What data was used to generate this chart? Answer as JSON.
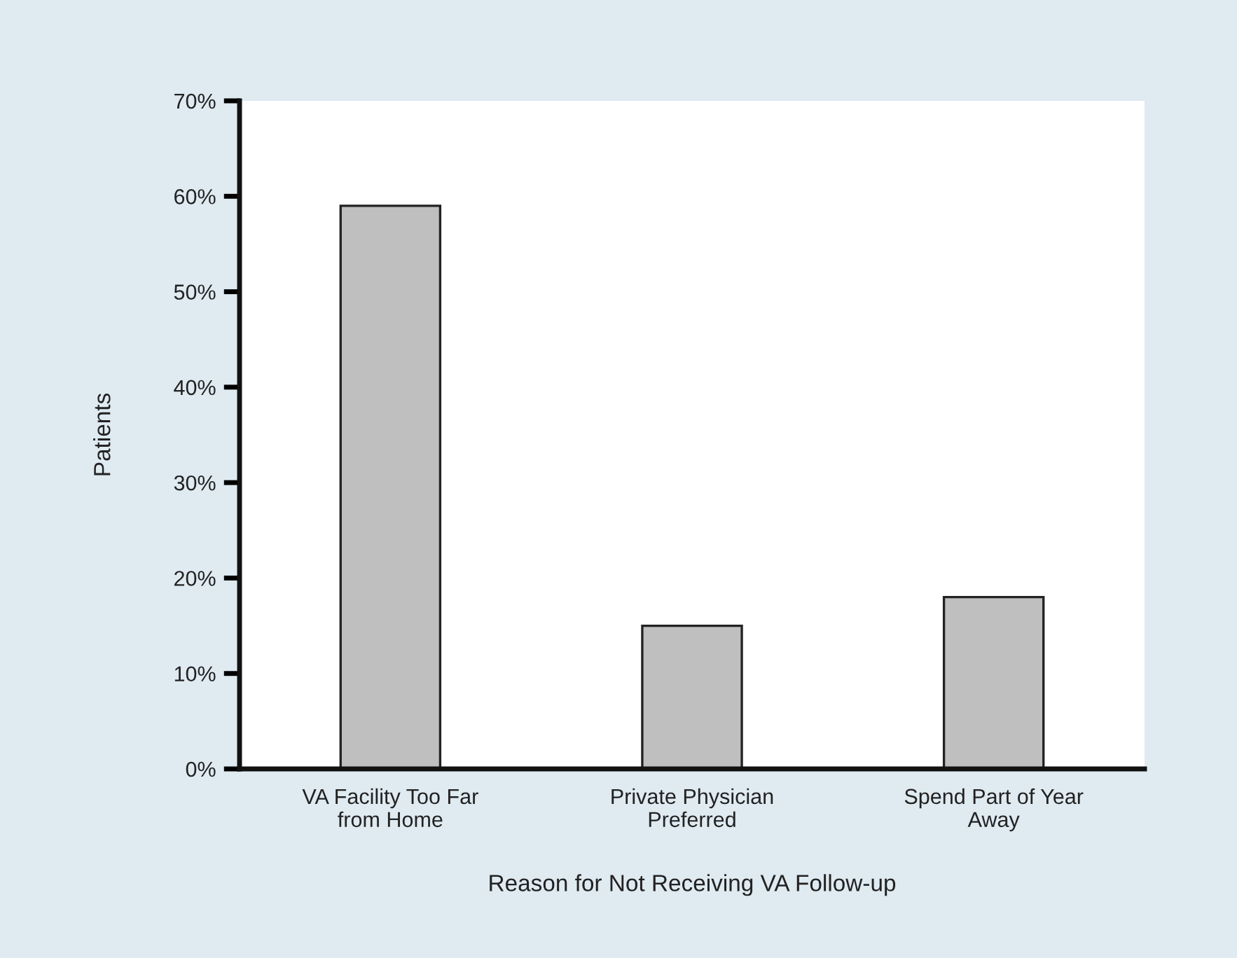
{
  "chart_data": {
    "type": "bar",
    "categories": [
      "VA Facility Too Far\nfrom Home",
      "Private Physician\nPreferred",
      "Spend Part of Year\nAway"
    ],
    "values": [
      59,
      15,
      18
    ],
    "color": "#bfbfbf",
    "xlabel": "Reason for Not Receiving VA Follow-up",
    "ylabel": "Patients",
    "ylim": [
      0,
      70
    ],
    "yticks": [
      {
        "value": 0,
        "label": "0%"
      },
      {
        "value": 10,
        "label": "10%"
      },
      {
        "value": 20,
        "label": "20%"
      },
      {
        "value": 30,
        "label": "30%"
      },
      {
        "value": 40,
        "label": "40%"
      },
      {
        "value": 50,
        "label": "50%"
      },
      {
        "value": 60,
        "label": "60%"
      },
      {
        "value": 70,
        "label": "70%"
      }
    ],
    "grid": false,
    "legend": false
  }
}
